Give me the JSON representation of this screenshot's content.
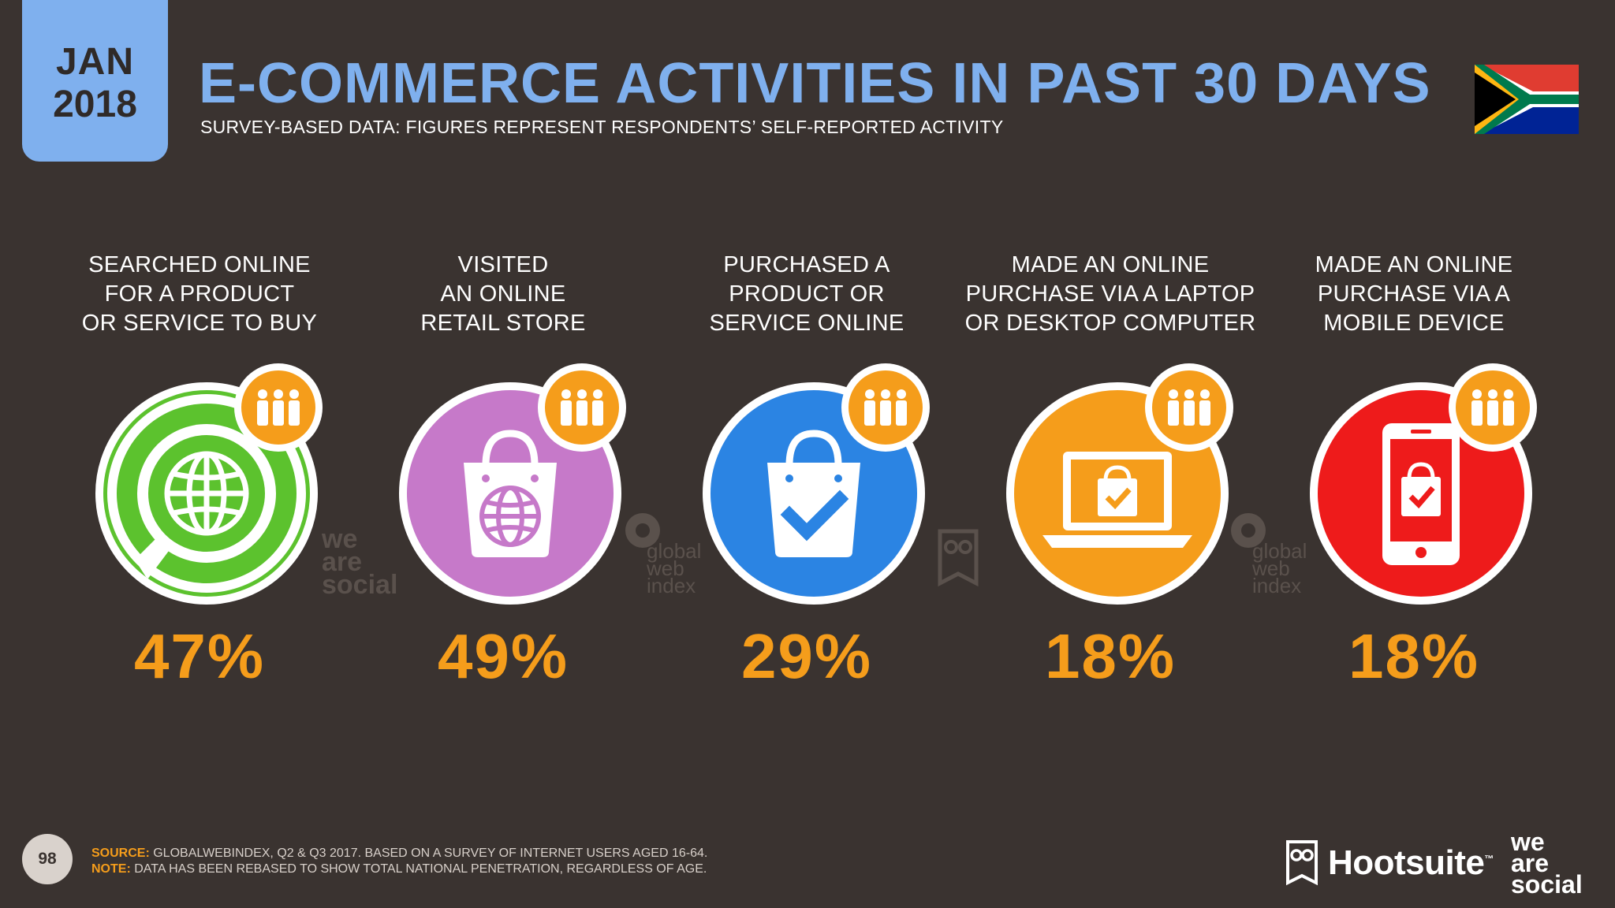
{
  "header": {
    "month": "JAN",
    "year": "2018",
    "title": "E-COMMERCE ACTIVITIES IN PAST 30 DAYS",
    "subtitle": "SURVEY-BASED DATA: FIGURES REPRESENT RESPONDENTS’ SELF-REPORTED ACTIVITY"
  },
  "flag": "south-africa-flag",
  "metrics": [
    {
      "label": [
        "SEARCHED ONLINE",
        "FOR A PRODUCT",
        "OR SERVICE TO BUY"
      ],
      "value": "47%",
      "color": "#5cc22e",
      "icon": "search-globe-icon"
    },
    {
      "label": [
        "VISITED",
        "AN ONLINE",
        "RETAIL STORE"
      ],
      "value": "49%",
      "color": "#c679c9",
      "icon": "shopping-bag-globe-icon"
    },
    {
      "label": [
        "PURCHASED A",
        "PRODUCT OR",
        "SERVICE ONLINE"
      ],
      "value": "29%",
      "color": "#2b84e3",
      "icon": "shopping-bag-check-icon"
    },
    {
      "label": [
        "MADE AN ONLINE",
        "PURCHASE VIA A LAPTOP",
        "OR DESKTOP COMPUTER"
      ],
      "value": "18%",
      "color": "#f59d1b",
      "icon": "laptop-bag-icon"
    },
    {
      "label": [
        "MADE AN ONLINE",
        "PURCHASE VIA A",
        "MOBILE DEVICE"
      ],
      "value": "18%",
      "color": "#ee1b1b",
      "icon": "mobile-bag-icon"
    }
  ],
  "watermarks": {
    "was_lines": [
      "we",
      "are",
      "social"
    ],
    "gwi_lines": [
      "global",
      "web",
      "index"
    ]
  },
  "footer": {
    "page": "98",
    "source_label": "SOURCE:",
    "source_text": "GLOBALWEBINDEX, Q2 & Q3 2017. BASED ON A SURVEY OF INTERNET USERS AGED 16-64.",
    "note_label": "NOTE:",
    "note_text": "DATA HAS BEEN REBASED TO SHOW TOTAL NATIONAL PENETRATION, REGARDLESS OF AGE.",
    "brand": "Hootsuite",
    "brand_tm": "™",
    "was_lines": [
      "we",
      "are",
      "social"
    ]
  },
  "colors": {
    "background": "#3a3330",
    "accent_blue": "#7fb0ee",
    "accent_orange": "#f59d1b"
  }
}
